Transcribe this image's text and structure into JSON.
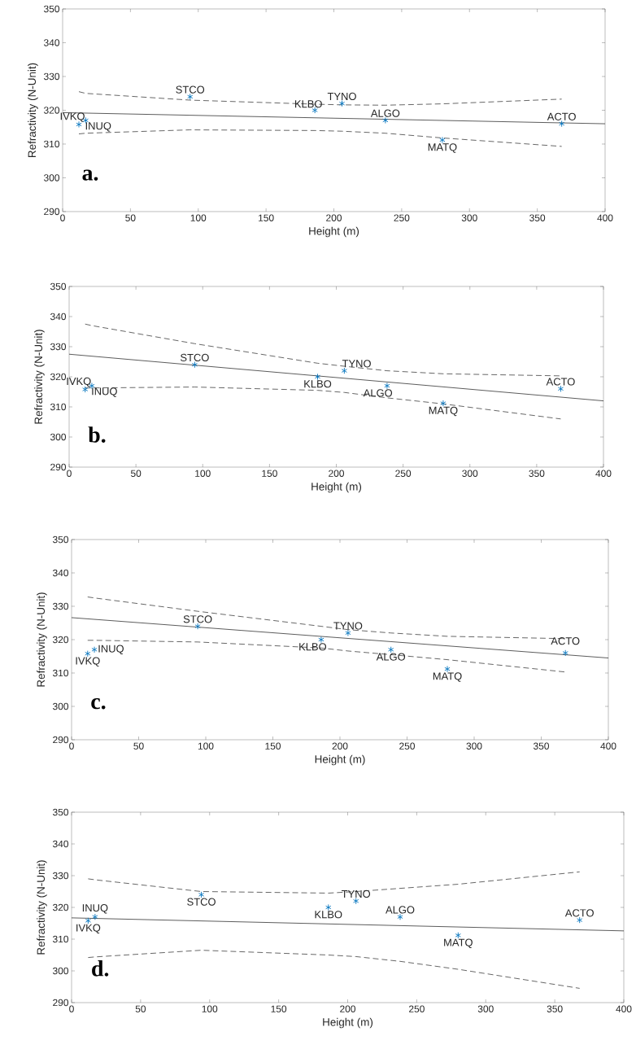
{
  "chart_data": [
    {
      "type": "scatter",
      "xlabel": "Height (m)",
      "ylabel": "Refractivity (N-Unit)",
      "xlim": [
        0,
        400
      ],
      "ylim": [
        290,
        350
      ],
      "xticks": [
        0,
        50,
        100,
        150,
        200,
        250,
        300,
        350,
        400
      ],
      "yticks": [
        290,
        300,
        310,
        320,
        330,
        340,
        350
      ],
      "x": [
        12,
        17,
        94,
        186,
        206,
        238,
        280,
        368
      ],
      "series": [
        {
          "marker": "cross",
          "color": "#0072bd",
          "values": [
            315.8,
            317,
            324,
            320,
            322,
            317,
            311.2,
            316
          ]
        },
        {
          "type": "line",
          "line_style": "solid",
          "color": "#333333",
          "x": [
            0,
            400
          ],
          "values": [
            319.3,
            316
          ]
        },
        {
          "type": "line",
          "line_style": "dashed",
          "color": "#404040",
          "x": [
            12,
            17,
            94,
            186,
            206,
            238,
            280,
            368
          ],
          "values": [
            325.5,
            325,
            323,
            321.8,
            321.6,
            321.5,
            321.9,
            323.3
          ]
        },
        {
          "type": "line",
          "line_style": "dashed",
          "color": "#404040",
          "x": [
            12,
            17,
            94,
            186,
            206,
            238,
            280,
            368
          ],
          "values": [
            313,
            313.2,
            314.2,
            314,
            313.8,
            313.2,
            311.8,
            309.3
          ]
        }
      ],
      "annotations": [
        "**a.**",
        {
          "text": "IVKQ",
          "x": 12,
          "y": 315.8
        },
        {
          "text": "INUQ",
          "x": 17,
          "y": 317
        },
        {
          "text": "STCO",
          "x": 94,
          "y": 324
        },
        {
          "text": "KLBO",
          "x": 186,
          "y": 320
        },
        {
          "text": "TYNO",
          "x": 206,
          "y": 322
        },
        {
          "text": "ALGO",
          "x": 238,
          "y": 317
        },
        {
          "text": "MATQ",
          "x": 280,
          "y": 311.2
        },
        {
          "text": "ACTO",
          "x": 368,
          "y": 316
        }
      ]
    },
    {
      "type": "scatter",
      "xlabel": "Height (m)",
      "ylabel": "Refractivity (N-Unit)",
      "xlim": [
        0,
        400
      ],
      "ylim": [
        290,
        350
      ],
      "xticks": [
        0,
        50,
        100,
        150,
        200,
        250,
        300,
        350,
        400
      ],
      "yticks": [
        290,
        300,
        310,
        320,
        330,
        340,
        350
      ],
      "x": [
        12,
        17,
        94,
        186,
        206,
        238,
        280,
        368
      ],
      "series": [
        {
          "marker": "cross",
          "color": "#0072bd",
          "values": [
            315.8,
            317,
            324,
            320,
            322,
            317,
            311.2,
            316
          ]
        },
        {
          "type": "line",
          "line_style": "solid",
          "color": "#333333",
          "x": [
            0,
            400
          ],
          "values": [
            327.5,
            312
          ]
        },
        {
          "type": "line",
          "line_style": "dashed",
          "color": "#404040",
          "x": [
            12,
            17,
            94,
            186,
            206,
            238,
            280,
            368
          ],
          "values": [
            337.5,
            337,
            331,
            324.5,
            323.5,
            322,
            321,
            320.3
          ]
        },
        {
          "type": "line",
          "line_style": "dashed",
          "color": "#404040",
          "x": [
            12,
            17,
            94,
            186,
            206,
            238,
            280,
            368
          ],
          "values": [
            316.3,
            316.3,
            316.6,
            315.5,
            314.8,
            313,
            311,
            306
          ]
        }
      ],
      "annotations": [
        "**b.**",
        {
          "text": "IVKQ",
          "x": 12,
          "y": 315.8
        },
        {
          "text": "INUQ",
          "x": 17,
          "y": 317
        },
        {
          "text": "STCO",
          "x": 94,
          "y": 324
        },
        {
          "text": "KLBO",
          "x": 186,
          "y": 320
        },
        {
          "text": "TYNO",
          "x": 206,
          "y": 322
        },
        {
          "text": "ALGO",
          "x": 238,
          "y": 317
        },
        {
          "text": "MATQ",
          "x": 280,
          "y": 311.2
        },
        {
          "text": "ACTO",
          "x": 368,
          "y": 316
        }
      ]
    },
    {
      "type": "scatter",
      "xlabel": "Height (m)",
      "ylabel": "Refractivity (N-Unit)",
      "xlim": [
        0,
        400
      ],
      "ylim": [
        290,
        350
      ],
      "xticks": [
        0,
        50,
        100,
        150,
        200,
        250,
        300,
        350,
        400
      ],
      "yticks": [
        290,
        300,
        310,
        320,
        330,
        340,
        350
      ],
      "x": [
        12,
        17,
        94,
        186,
        206,
        238,
        280,
        368
      ],
      "series": [
        {
          "marker": "cross",
          "color": "#0072bd",
          "values": [
            315.8,
            317,
            324,
            320,
            322,
            317,
            311.2,
            316
          ]
        },
        {
          "type": "line",
          "line_style": "solid",
          "color": "#333333",
          "x": [
            0,
            400
          ],
          "values": [
            326.6,
            314.5
          ]
        },
        {
          "type": "line",
          "line_style": "dashed",
          "color": "#404040",
          "x": [
            12,
            17,
            94,
            186,
            206,
            238,
            280,
            368
          ],
          "values": [
            332.8,
            332.5,
            328.5,
            324,
            323,
            322,
            321,
            320.3
          ]
        },
        {
          "type": "line",
          "line_style": "dashed",
          "color": "#404040",
          "x": [
            12,
            17,
            94,
            186,
            206,
            238,
            280,
            368
          ],
          "values": [
            319.8,
            319.8,
            319.3,
            317.5,
            316.6,
            315.5,
            314,
            310.3
          ]
        }
      ],
      "annotations": [
        "**c.**",
        {
          "text": "IVKQ",
          "x": 12,
          "y": 315.8
        },
        {
          "text": "INUQ",
          "x": 17,
          "y": 317
        },
        {
          "text": "STCO",
          "x": 94,
          "y": 324
        },
        {
          "text": "KLBO",
          "x": 186,
          "y": 320
        },
        {
          "text": "TYNO",
          "x": 206,
          "y": 322
        },
        {
          "text": "ALGO",
          "x": 238,
          "y": 317
        },
        {
          "text": "MATQ",
          "x": 280,
          "y": 311.2
        },
        {
          "text": "ACTO",
          "x": 368,
          "y": 316
        }
      ]
    },
    {
      "type": "scatter",
      "xlabel": "Height (m)",
      "ylabel": "Refractivity (N-Unit)",
      "xlim": [
        0,
        400
      ],
      "ylim": [
        290,
        350
      ],
      "xticks": [
        0,
        50,
        100,
        150,
        200,
        250,
        300,
        350,
        400
      ],
      "yticks": [
        290,
        300,
        310,
        320,
        330,
        340,
        350
      ],
      "x": [
        12,
        17,
        94,
        186,
        206,
        238,
        280,
        368
      ],
      "series": [
        {
          "marker": "cross",
          "color": "#0072bd",
          "values": [
            315.8,
            317,
            324,
            320,
            322,
            317,
            311.2,
            316
          ]
        },
        {
          "type": "line",
          "line_style": "solid",
          "color": "#333333",
          "x": [
            0,
            400
          ],
          "values": [
            316.7,
            312.6
          ]
        },
        {
          "type": "line",
          "line_style": "dashed",
          "color": "#404040",
          "x": [
            12,
            17,
            94,
            186,
            206,
            238,
            280,
            368
          ],
          "values": [
            329,
            328.7,
            325,
            324.5,
            325,
            326,
            327.3,
            331.2
          ]
        },
        {
          "type": "line",
          "line_style": "dashed",
          "color": "#404040",
          "x": [
            12,
            17,
            94,
            186,
            206,
            238,
            280,
            368
          ],
          "values": [
            304.2,
            304.4,
            306.5,
            305,
            304.5,
            303,
            300.5,
            294.5
          ]
        }
      ],
      "annotations": [
        "**d.**",
        {
          "text": "IVKQ",
          "x": 12,
          "y": 315.8
        },
        {
          "text": "INUQ",
          "x": 17,
          "y": 317
        },
        {
          "text": "STCO",
          "x": 94,
          "y": 324
        },
        {
          "text": "KLBO",
          "x": 186,
          "y": 320
        },
        {
          "text": "TYNO",
          "x": 206,
          "y": 322
        },
        {
          "text": "ALGO",
          "x": 238,
          "y": 317
        },
        {
          "text": "MATQ",
          "x": 280,
          "y": 311.2
        },
        {
          "text": "ACTO",
          "x": 368,
          "y": 316
        }
      ]
    }
  ]
}
